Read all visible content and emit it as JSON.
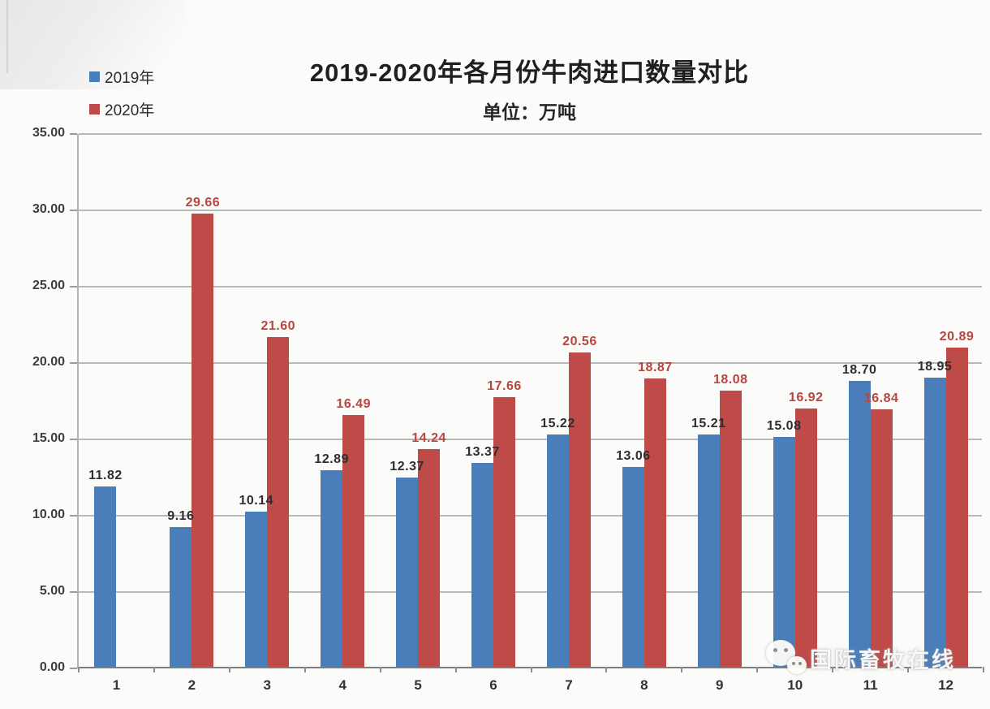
{
  "chart_data": {
    "type": "bar",
    "title": "2019-2020年各月份牛肉进口数量对比",
    "subtitle": "单位：万吨",
    "categories": [
      "1",
      "2",
      "3",
      "4",
      "5",
      "6",
      "7",
      "8",
      "9",
      "10",
      "11",
      "12"
    ],
    "series": [
      {
        "name": "2019年",
        "color": "#4a7ebb",
        "label_color": "#2e2e2e",
        "values": [
          11.82,
          9.16,
          10.14,
          12.89,
          12.37,
          13.37,
          15.22,
          13.06,
          15.21,
          15.08,
          18.7,
          18.95
        ]
      },
      {
        "name": "2020年",
        "color": "#bf4b48",
        "label_color": "#b8453f",
        "values": [
          null,
          29.66,
          21.6,
          16.49,
          14.24,
          17.66,
          20.56,
          18.87,
          18.08,
          16.92,
          16.84,
          20.89
        ]
      }
    ],
    "ylim": [
      0,
      35
    ],
    "ytick_step": 5,
    "ytick_labels": [
      "0.00",
      "5.00",
      "10.00",
      "15.00",
      "20.00",
      "25.00",
      "30.00",
      "35.00"
    ],
    "grid": true,
    "legend_position": "top-left"
  },
  "watermark": {
    "text": "国际畜牧在线",
    "icon": "wechat-icon"
  }
}
